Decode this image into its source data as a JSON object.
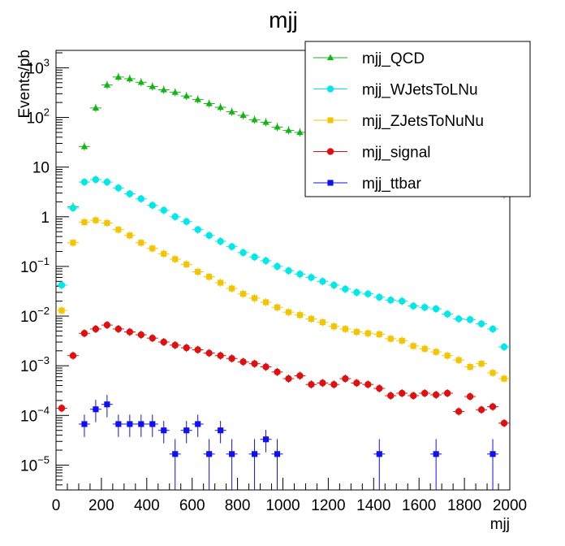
{
  "chart_data": {
    "type": "scatter",
    "title": "mjj",
    "xlabel": "mjj",
    "ylabel": "Events/pb",
    "xlim": [
      0,
      2000
    ],
    "ylim_log10": [
      -5.5,
      3.35
    ],
    "yscale": "log",
    "grid": false,
    "legend_position": "top-right",
    "x_bin_width": 50,
    "x_ticks": [
      {
        "value": 0,
        "label": "0"
      },
      {
        "value": 200,
        "label": "200"
      },
      {
        "value": 400,
        "label": "400"
      },
      {
        "value": 600,
        "label": "600"
      },
      {
        "value": 800,
        "label": "800"
      },
      {
        "value": 1000,
        "label": "1000"
      },
      {
        "value": 1200,
        "label": "1200"
      },
      {
        "value": 1400,
        "label": "1400"
      },
      {
        "value": 1600,
        "label": "1600"
      },
      {
        "value": 1800,
        "label": "1800"
      },
      {
        "value": 2000,
        "label": "2000"
      }
    ],
    "y_ticks": [
      {
        "value": 1e-05,
        "label": "10",
        "exp": "−5"
      },
      {
        "value": 0.0001,
        "label": "10",
        "exp": "−4"
      },
      {
        "value": 0.001,
        "label": "10",
        "exp": "−3"
      },
      {
        "value": 0.01,
        "label": "10",
        "exp": "−2"
      },
      {
        "value": 0.1,
        "label": "10",
        "exp": "−1"
      },
      {
        "value": 1,
        "label": "1",
        "exp": ""
      },
      {
        "value": 10,
        "label": "10",
        "exp": ""
      },
      {
        "value": 100,
        "label": "10",
        "exp": "2"
      },
      {
        "value": 1000,
        "label": "10",
        "exp": "3"
      }
    ],
    "series": [
      {
        "name": "mjj_QCD",
        "color": "#11b511",
        "marker": "triangle",
        "x": [
          75,
          125,
          175,
          225,
          275,
          325,
          375,
          425,
          475,
          525,
          575,
          625,
          675,
          725,
          775,
          825,
          875,
          925,
          975,
          1025,
          1075,
          1125,
          1975
        ],
        "y": [
          1.6,
          26,
          155,
          450,
          650,
          600,
          510,
          420,
          360,
          320,
          270,
          230,
          190,
          160,
          130,
          110,
          90,
          80,
          64,
          55,
          50,
          46,
          2.8
        ]
      },
      {
        "name": "mjj_WJetsToLNu",
        "color": "#00e8e8",
        "marker": "circle",
        "x": [
          25,
          75,
          125,
          175,
          225,
          275,
          325,
          375,
          425,
          475,
          525,
          575,
          625,
          675,
          725,
          775,
          825,
          875,
          925,
          975,
          1025,
          1075,
          1125,
          1175,
          1225,
          1275,
          1325,
          1375,
          1425,
          1475,
          1525,
          1575,
          1625,
          1675,
          1725,
          1775,
          1825,
          1875,
          1925,
          1975
        ],
        "y": [
          0.042,
          1.5,
          5.0,
          5.6,
          5.0,
          3.8,
          2.9,
          2.3,
          1.7,
          1.35,
          1.0,
          0.8,
          0.55,
          0.42,
          0.32,
          0.25,
          0.19,
          0.155,
          0.13,
          0.1,
          0.082,
          0.07,
          0.06,
          0.05,
          0.042,
          0.035,
          0.03,
          0.028,
          0.024,
          0.021,
          0.02,
          0.016,
          0.015,
          0.014,
          0.011,
          0.0088,
          0.0085,
          0.007,
          0.0055,
          0.0024
        ]
      },
      {
        "name": "mjj_ZJetsToNuNu",
        "color": "#f5c400",
        "marker": "square",
        "x": [
          25,
          75,
          125,
          175,
          225,
          275,
          325,
          375,
          425,
          475,
          525,
          575,
          625,
          675,
          725,
          775,
          825,
          875,
          925,
          975,
          1025,
          1075,
          1125,
          1175,
          1225,
          1275,
          1325,
          1375,
          1425,
          1475,
          1525,
          1575,
          1625,
          1675,
          1725,
          1775,
          1825,
          1875,
          1925,
          1975
        ],
        "y": [
          0.013,
          0.3,
          0.78,
          0.85,
          0.75,
          0.55,
          0.42,
          0.3,
          0.23,
          0.18,
          0.14,
          0.11,
          0.078,
          0.062,
          0.047,
          0.036,
          0.028,
          0.023,
          0.019,
          0.015,
          0.012,
          0.0105,
          0.0088,
          0.0075,
          0.0062,
          0.0055,
          0.0048,
          0.0045,
          0.0043,
          0.0035,
          0.0032,
          0.0025,
          0.0022,
          0.0019,
          0.0016,
          0.0013,
          0.00095,
          0.0011,
          0.00072,
          0.00055
        ]
      },
      {
        "name": "mjj_signal",
        "color": "#e01010",
        "marker": "circle",
        "x": [
          25,
          75,
          125,
          175,
          225,
          275,
          325,
          375,
          425,
          475,
          525,
          575,
          625,
          675,
          725,
          775,
          825,
          875,
          925,
          975,
          1025,
          1075,
          1125,
          1175,
          1225,
          1275,
          1325,
          1375,
          1425,
          1475,
          1525,
          1575,
          1625,
          1675,
          1725,
          1775,
          1825,
          1875,
          1925,
          1975
        ],
        "y": [
          0.00014,
          0.0016,
          0.0045,
          0.0055,
          0.0066,
          0.0055,
          0.0048,
          0.0042,
          0.0036,
          0.003,
          0.0026,
          0.0023,
          0.0021,
          0.0018,
          0.0016,
          0.0014,
          0.0012,
          0.0011,
          0.00095,
          0.00075,
          0.00055,
          0.00063,
          0.00042,
          0.00045,
          0.00042,
          0.00055,
          0.00045,
          0.00042,
          0.00035,
          0.00025,
          0.00028,
          0.00025,
          0.00028,
          0.00026,
          0.00028,
          0.00012,
          0.00024,
          0.00013,
          0.00015,
          7e-05
        ]
      },
      {
        "name": "mjj_ttbar",
        "color": "#1010f0",
        "marker": "square",
        "x": [
          125,
          175,
          225,
          275,
          325,
          375,
          425,
          475,
          525,
          575,
          625,
          675,
          725,
          775,
          875,
          925,
          975,
          1425,
          1675,
          1925
        ],
        "y": [
          6.7e-05,
          0.000133,
          0.000167,
          6.7e-05,
          6.7e-05,
          6.7e-05,
          6.7e-05,
          5e-05,
          1.67e-05,
          5e-05,
          6.7e-05,
          1.67e-05,
          5e-05,
          1.67e-05,
          1.67e-05,
          3.3e-05,
          1.67e-05,
          1.67e-05,
          1.67e-05,
          1.67e-05
        ]
      }
    ]
  }
}
